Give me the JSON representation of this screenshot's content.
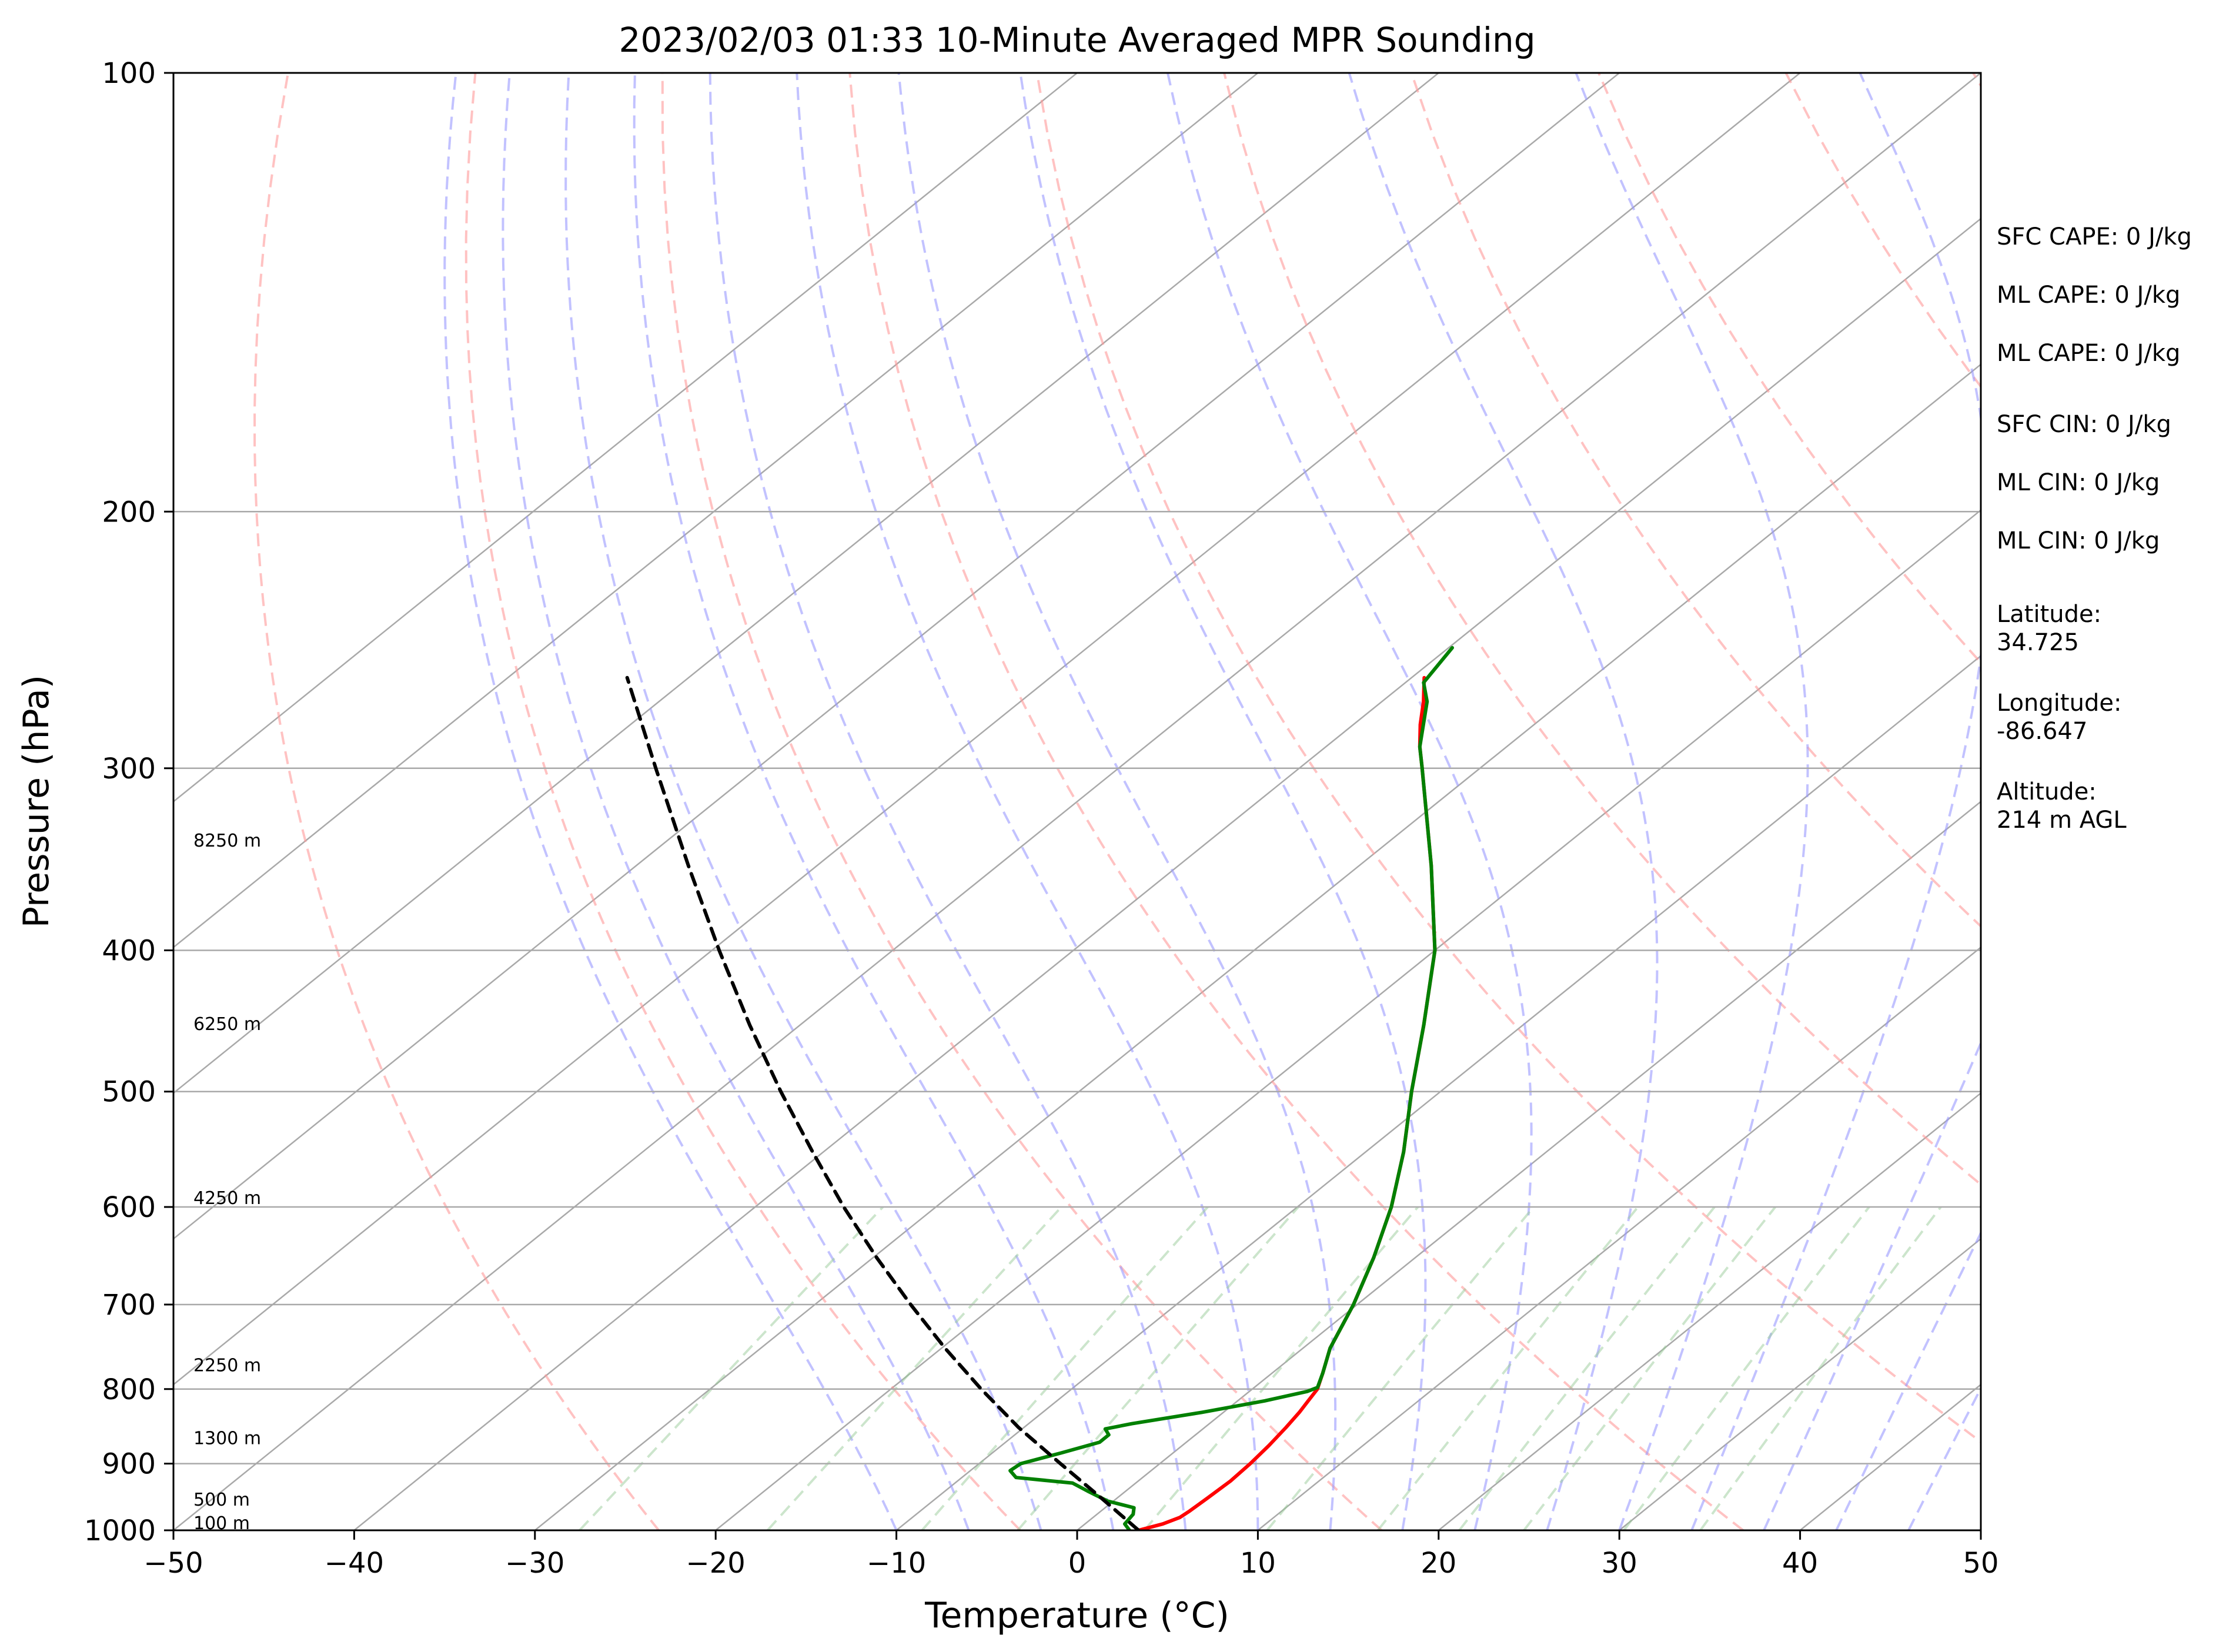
{
  "chart_data": {
    "type": "line",
    "title": "2023/02/03 01:33 10-Minute Averaged MPR Sounding",
    "xlabel": "Temperature (°C)",
    "ylabel": "Pressure (hPa)",
    "xlim": [
      -50,
      50
    ],
    "ylim": [
      1000,
      100
    ],
    "y_scale": "log",
    "x_ticks": [
      -50,
      -40,
      -30,
      -20,
      -10,
      0,
      10,
      20,
      30,
      40,
      50
    ],
    "x_tick_labels": [
      "−50",
      "−40",
      "−30",
      "−20",
      "−10",
      "0",
      "10",
      "20",
      "30",
      "40",
      "50"
    ],
    "y_ticks": [
      1000,
      900,
      800,
      700,
      600,
      500,
      400,
      300,
      200,
      100
    ],
    "y_tick_labels": [
      "1000",
      "900",
      "800",
      "700",
      "600",
      "500",
      "400",
      "300",
      "200",
      "100"
    ],
    "grid": true,
    "colors": {
      "temperature": "#ff0000",
      "dewpoint": "#008000",
      "parcel": "#000000",
      "isotherms": "#a9a9a9",
      "isobars": "#a9a9a9",
      "dry_adiabats": "#ff9999",
      "moist_adiabats": "#9999ff",
      "mixing_ratio": "#99cc99"
    },
    "series": [
      {
        "key": "temperature",
        "points": [
          {
            "p": 1000,
            "t": 3.4
          },
          {
            "p": 990,
            "t": 4.3
          },
          {
            "p": 980,
            "t": 4.8
          },
          {
            "p": 970,
            "t": 4.9
          },
          {
            "p": 950,
            "t": 5.0
          },
          {
            "p": 925,
            "t": 5.1
          },
          {
            "p": 900,
            "t": 5.0
          },
          {
            "p": 875,
            "t": 4.8
          },
          {
            "p": 850,
            "t": 4.5
          },
          {
            "p": 830,
            "t": 4.2
          },
          {
            "p": 815,
            "t": 3.9
          },
          {
            "p": 800,
            "t": 3.6
          },
          {
            "p": 780,
            "t": 2.8
          },
          {
            "p": 750,
            "t": 1.5
          },
          {
            "p": 700,
            "t": -0.2
          },
          {
            "p": 650,
            "t": -2.3
          },
          {
            "p": 600,
            "t": -4.8
          },
          {
            "p": 550,
            "t": -7.9
          },
          {
            "p": 500,
            "t": -11.6
          },
          {
            "p": 450,
            "t": -15.5
          },
          {
            "p": 400,
            "t": -20.0
          },
          {
            "p": 350,
            "t": -26.0
          },
          {
            "p": 300,
            "t": -33.2
          },
          {
            "p": 290,
            "t": -34.8
          },
          {
            "p": 280,
            "t": -36.3
          },
          {
            "p": 270,
            "t": -37.7
          },
          {
            "p": 260,
            "t": -39.3
          }
        ]
      },
      {
        "key": "dewpoint",
        "points": [
          {
            "p": 1000,
            "t": 2.9
          },
          {
            "p": 990,
            "t": 2.2
          },
          {
            "p": 975,
            "t": 2.0
          },
          {
            "p": 965,
            "t": 1.6
          },
          {
            "p": 955,
            "t": -0.3
          },
          {
            "p": 940,
            "t": -2.1
          },
          {
            "p": 928,
            "t": -3.5
          },
          {
            "p": 920,
            "t": -7.0
          },
          {
            "p": 910,
            "t": -7.8
          },
          {
            "p": 900,
            "t": -7.7
          },
          {
            "p": 885,
            "t": -6.2
          },
          {
            "p": 870,
            "t": -4.8
          },
          {
            "p": 860,
            "t": -4.8
          },
          {
            "p": 852,
            "t": -5.4
          },
          {
            "p": 845,
            "t": -4.3
          },
          {
            "p": 830,
            "t": -1.2
          },
          {
            "p": 815,
            "t": 1.5
          },
          {
            "p": 803,
            "t": 3.2
          },
          {
            "p": 798,
            "t": 3.5
          },
          {
            "p": 780,
            "t": 2.8
          },
          {
            "p": 750,
            "t": 1.5
          },
          {
            "p": 700,
            "t": -0.2
          },
          {
            "p": 650,
            "t": -2.3
          },
          {
            "p": 600,
            "t": -4.8
          },
          {
            "p": 550,
            "t": -7.9
          },
          {
            "p": 500,
            "t": -11.6
          },
          {
            "p": 450,
            "t": -15.5
          },
          {
            "p": 400,
            "t": -20.0
          },
          {
            "p": 350,
            "t": -26.0
          },
          {
            "p": 300,
            "t": -33.2
          },
          {
            "p": 290,
            "t": -34.8
          },
          {
            "p": 270,
            "t": -37.5
          },
          {
            "p": 262,
            "t": -39.0
          },
          {
            "p": 248,
            "t": -39.8
          }
        ]
      },
      {
        "key": "parcel",
        "points": [
          {
            "p": 1000,
            "t": 3.4
          },
          {
            "p": 950,
            "t": -0.9
          },
          {
            "p": 900,
            "t": -5.5
          },
          {
            "p": 850,
            "t": -10.3
          },
          {
            "p": 800,
            "t": -15.0
          },
          {
            "p": 750,
            "t": -19.8
          },
          {
            "p": 700,
            "t": -24.7
          },
          {
            "p": 650,
            "t": -29.8
          },
          {
            "p": 600,
            "t": -35.1
          },
          {
            "p": 550,
            "t": -40.6
          },
          {
            "p": 500,
            "t": -46.5
          },
          {
            "p": 450,
            "t": -52.8
          },
          {
            "p": 400,
            "t": -59.6
          },
          {
            "p": 350,
            "t": -67.1
          },
          {
            "p": 300,
            "t": -75.6
          },
          {
            "p": 260,
            "t": -83.4
          }
        ]
      }
    ],
    "height_labels": [
      {
        "label": "100 m",
        "p": 988
      },
      {
        "label": "500 m",
        "p": 952
      },
      {
        "label": "1300 m",
        "p": 864
      },
      {
        "label": "2250 m",
        "p": 770
      },
      {
        "label": "4250 m",
        "p": 591
      },
      {
        "label": "6250 m",
        "p": 449
      },
      {
        "label": "8250 m",
        "p": 336
      }
    ],
    "indices": [
      {
        "label": "SFC CAPE: 0 J/kg"
      },
      {
        "label": "ML CAPE: 0 J/kg"
      },
      {
        "label": "ML CAPE: 0 J/kg"
      },
      {
        "label": "SFC CIN: 0 J/kg"
      },
      {
        "label": "ML CIN: 0 J/kg"
      },
      {
        "label": "ML CIN: 0 J/kg"
      }
    ],
    "location": [
      {
        "name": "latitude",
        "line1": "Latitude:",
        "line2": "34.725"
      },
      {
        "name": "longitude",
        "line1": "Longitude:",
        "line2": "-86.647"
      },
      {
        "name": "altitude",
        "line1": "Altitude:",
        "line2": "214 m AGL"
      }
    ]
  }
}
